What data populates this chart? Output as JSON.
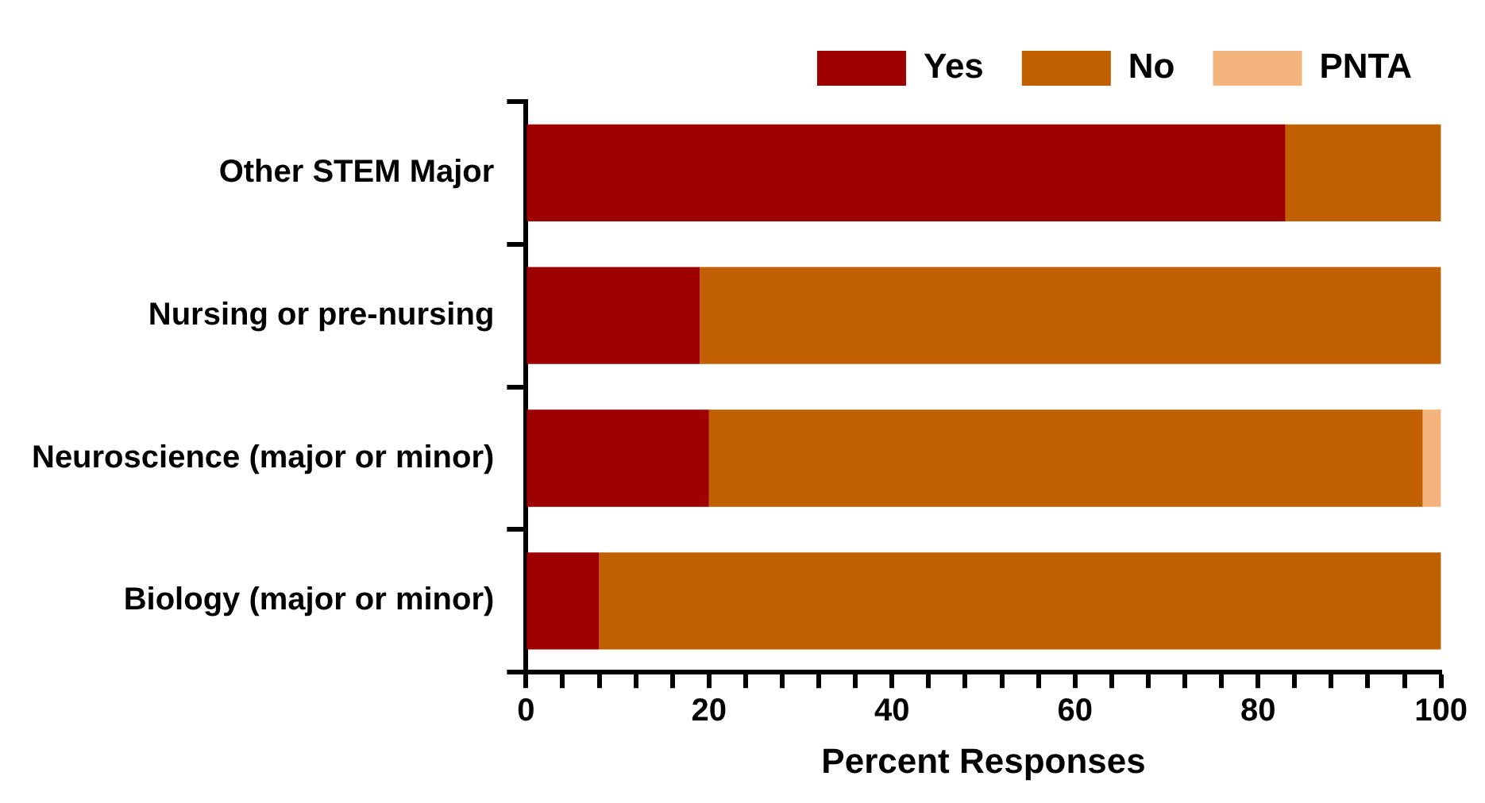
{
  "chart_data": {
    "type": "bar",
    "orientation": "horizontal",
    "stacked": true,
    "xlabel": "Percent Responses",
    "categories": [
      "Other STEM Major",
      "Nursing or pre-nursing",
      "Neuroscience (major or minor)",
      "Biology (major or minor)"
    ],
    "series": [
      {
        "name": "Yes",
        "color": "#9e0000",
        "values": [
          83,
          19,
          20,
          8
        ]
      },
      {
        "name": "No",
        "color": "#c06000",
        "values": [
          17,
          81,
          78,
          92
        ]
      },
      {
        "name": "PNTA",
        "color": "#f2b47c",
        "values": [
          0,
          0,
          2,
          0
        ]
      }
    ],
    "xlim": [
      0,
      100
    ],
    "xticks": [
      0,
      {
        "value": 4,
        "label": null
      },
      {
        "value": 8,
        "label": null
      },
      {
        "value": 12,
        "label": null
      },
      {
        "value": 16,
        "label": null
      },
      20,
      {
        "value": 24,
        "label": null
      },
      {
        "value": 28,
        "label": null
      },
      {
        "value": 32,
        "label": null
      },
      {
        "value": 36,
        "label": null
      },
      40,
      {
        "value": 44,
        "label": null
      },
      {
        "value": 48,
        "label": null
      },
      {
        "value": 52,
        "label": null
      },
      {
        "value": 56,
        "label": null
      },
      60,
      {
        "value": 64,
        "label": null
      },
      {
        "value": 68,
        "label": null
      },
      {
        "value": 72,
        "label": null
      },
      {
        "value": 76,
        "label": null
      },
      80,
      {
        "value": 84,
        "label": null
      },
      {
        "value": 88,
        "label": null
      },
      {
        "value": 92,
        "label": null
      },
      {
        "value": 96,
        "label": null
      },
      100
    ],
    "grid": false,
    "legend": "top right"
  }
}
